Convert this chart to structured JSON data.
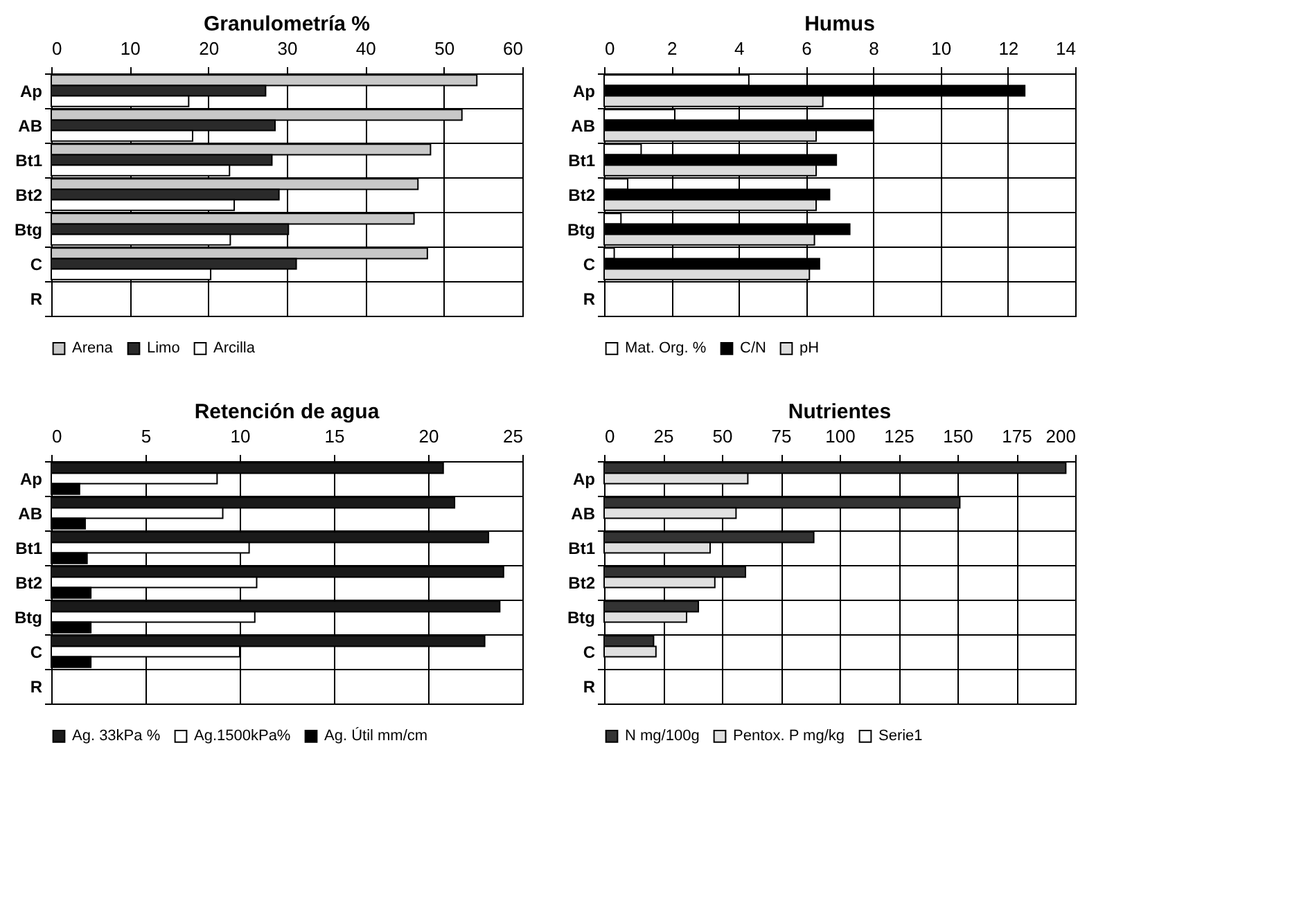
{
  "chart_data": [
    {
      "type": "bar",
      "orientation": "horizontal",
      "title": "Granulometría %",
      "categories": [
        "Ap",
        "AB",
        "Bt1",
        "Bt2",
        "Btg",
        "C",
        "R"
      ],
      "xlim": [
        0,
        60
      ],
      "xticks": [
        0,
        10,
        20,
        30,
        40,
        50,
        60
      ],
      "grid": true,
      "legend": "bottom",
      "series": [
        {
          "name": "Arena",
          "color": "#c8c8c8",
          "values": [
            54.2,
            52.3,
            48.3,
            46.7,
            46.2,
            47.9,
            null
          ]
        },
        {
          "name": "Limo",
          "color": "#2a2a2a",
          "values": [
            27.3,
            28.5,
            28.1,
            29.0,
            30.2,
            31.2,
            null
          ]
        },
        {
          "name": "Arcilla",
          "color": "#ffffff",
          "values": [
            17.5,
            18.0,
            22.7,
            23.3,
            22.8,
            20.3,
            null
          ]
        }
      ]
    },
    {
      "type": "bar",
      "orientation": "horizontal",
      "title": "Humus",
      "categories": [
        "Ap",
        "AB",
        "Bt1",
        "Bt2",
        "Btg",
        "C",
        "R"
      ],
      "xlim": [
        0,
        14
      ],
      "xticks": [
        0,
        2,
        4,
        6,
        8,
        10,
        12,
        14
      ],
      "grid": true,
      "legend": "bottom",
      "series": [
        {
          "name": "Mat. Org. %",
          "color": "#ffffff",
          "values": [
            4.3,
            2.1,
            1.1,
            0.7,
            0.5,
            0.3,
            null
          ]
        },
        {
          "name": "C/N",
          "color": "#000000",
          "values": [
            12.5,
            8.0,
            6.9,
            6.7,
            7.3,
            6.4,
            null
          ]
        },
        {
          "name": "pH",
          "color": "#dcdcdc",
          "values": [
            6.5,
            6.3,
            6.3,
            6.3,
            6.25,
            6.1,
            null
          ]
        }
      ]
    },
    {
      "type": "bar",
      "orientation": "horizontal",
      "title": "Retención de agua",
      "categories": [
        "Ap",
        "AB",
        "Bt1",
        "Bt2",
        "Btg",
        "C",
        "R"
      ],
      "xlim": [
        0,
        25
      ],
      "xticks": [
        0,
        5,
        10,
        15,
        20,
        25
      ],
      "grid": true,
      "legend": "bottom",
      "series": [
        {
          "name": "Ag. 33kPa %",
          "color": "#1a1a1a",
          "values": [
            20.8,
            21.4,
            23.2,
            24.0,
            23.8,
            23.0,
            null
          ]
        },
        {
          "name": "Ag.1500kPa%",
          "color": "#ffffff",
          "values": [
            8.8,
            9.1,
            10.5,
            10.9,
            10.8,
            10.0,
            null
          ]
        },
        {
          "name": "Ag. Útil mm/cm",
          "color": "#000000",
          "values": [
            1.5,
            1.8,
            1.9,
            2.1,
            2.1,
            2.1,
            null
          ]
        }
      ]
    },
    {
      "type": "bar",
      "orientation": "horizontal",
      "title": "Nutrientes",
      "categories": [
        "Ap",
        "AB",
        "Bt1",
        "Bt2",
        "Btg",
        "C",
        "R"
      ],
      "xlim": [
        0,
        200
      ],
      "xticks": [
        0,
        25,
        50,
        75,
        100,
        125,
        150,
        175,
        200
      ],
      "grid": true,
      "legend": "bottom",
      "series": [
        {
          "name": "N mg/100g",
          "color": "#333333",
          "values": [
            196,
            151,
            89,
            60,
            40,
            21,
            null
          ]
        },
        {
          "name": "Pentox. P mg/kg",
          "color": "#e0e0e0",
          "values": [
            61,
            56,
            45,
            47,
            35,
            22,
            null
          ]
        },
        {
          "name": "Serie1",
          "color": "#ffffff",
          "values": [
            null,
            null,
            null,
            null,
            null,
            null,
            null
          ]
        }
      ]
    }
  ]
}
